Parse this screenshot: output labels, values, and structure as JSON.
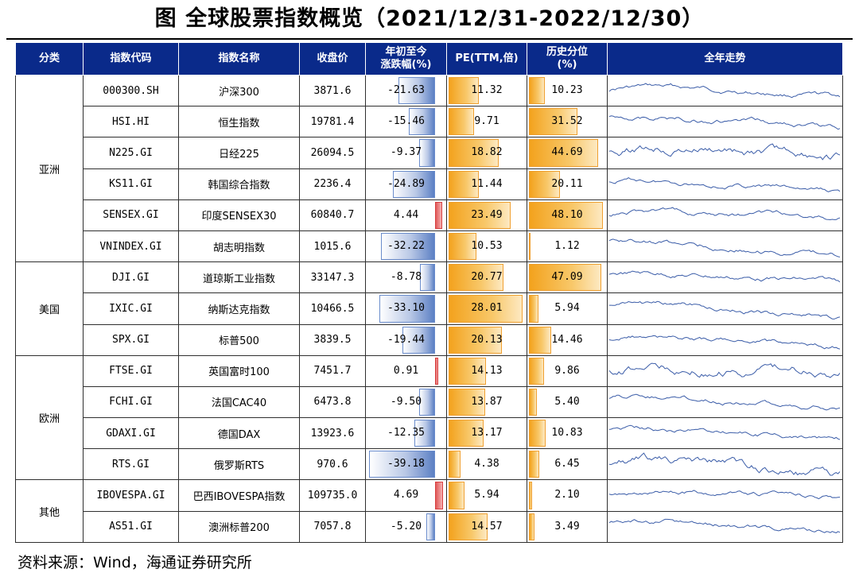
{
  "title": "图  全球股票指数概览（2021/12/31-2022/12/30）",
  "source": "资料来源：Wind，海通证券研究所",
  "headers": {
    "category": "分类",
    "code": "指数代码",
    "name": "指数名称",
    "close": "收盘价",
    "ytd_line1": "年初至今",
    "ytd_line2": "涨跌幅(%)",
    "pe": "PE(TTM,倍)",
    "pct_line1": "历史分位",
    "pct_line2": "(%)",
    "trend": "全年走势"
  },
  "groups": [
    {
      "label": "亚洲",
      "rows": 6
    },
    {
      "label": "美国",
      "rows": 3
    },
    {
      "label": "欧洲",
      "rows": 4
    },
    {
      "label": "其他",
      "rows": 2
    }
  ],
  "rows": [
    {
      "code": "000300.SH",
      "name": "沪深300",
      "close": "3871.6",
      "ytd": "-21.63",
      "ytd_v": -21.63,
      "pe": "11.32",
      "pe_v": 11.32,
      "pct": "10.23",
      "pct_v": 10.23
    },
    {
      "code": "HSI.HI",
      "name": "恒生指数",
      "close": "19781.4",
      "ytd": "-15.46",
      "ytd_v": -15.46,
      "pe": "9.71",
      "pe_v": 9.71,
      "pct": "31.52",
      "pct_v": 31.52
    },
    {
      "code": "N225.GI",
      "name": "日经225",
      "close": "26094.5",
      "ytd": "-9.37",
      "ytd_v": -9.37,
      "pe": "18.82",
      "pe_v": 18.82,
      "pct": "44.69",
      "pct_v": 44.69
    },
    {
      "code": "KS11.GI",
      "name": "韩国综合指数",
      "close": "2236.4",
      "ytd": "-24.89",
      "ytd_v": -24.89,
      "pe": "11.44",
      "pe_v": 11.44,
      "pct": "20.11",
      "pct_v": 20.11
    },
    {
      "code": "SENSEX.GI",
      "name": "印度SENSEX30",
      "close": "60840.7",
      "ytd": "4.44",
      "ytd_v": 4.44,
      "pe": "23.49",
      "pe_v": 23.49,
      "pct": "48.10",
      "pct_v": 48.1
    },
    {
      "code": "VNINDEX.GI",
      "name": "胡志明指数",
      "close": "1015.6",
      "ytd": "-32.22",
      "ytd_v": -32.22,
      "pe": "10.53",
      "pe_v": 10.53,
      "pct": "1.12",
      "pct_v": 1.12
    },
    {
      "code": "DJI.GI",
      "name": "道琼斯工业指数",
      "close": "33147.3",
      "ytd": "-8.78",
      "ytd_v": -8.78,
      "pe": "20.77",
      "pe_v": 20.77,
      "pct": "47.09",
      "pct_v": 47.09
    },
    {
      "code": "IXIC.GI",
      "name": "纳斯达克指数",
      "close": "10466.5",
      "ytd": "-33.10",
      "ytd_v": -33.1,
      "pe": "28.01",
      "pe_v": 28.01,
      "pct": "5.94",
      "pct_v": 5.94
    },
    {
      "code": "SPX.GI",
      "name": "标普500",
      "close": "3839.5",
      "ytd": "-19.44",
      "ytd_v": -19.44,
      "pe": "20.13",
      "pe_v": 20.13,
      "pct": "14.46",
      "pct_v": 14.46
    },
    {
      "code": "FTSE.GI",
      "name": "英国富时100",
      "close": "7451.7",
      "ytd": "0.91",
      "ytd_v": 0.91,
      "pe": "14.13",
      "pe_v": 14.13,
      "pct": "9.86",
      "pct_v": 9.86
    },
    {
      "code": "FCHI.GI",
      "name": "法国CAC40",
      "close": "6473.8",
      "ytd": "-9.50",
      "ytd_v": -9.5,
      "pe": "13.87",
      "pe_v": 13.87,
      "pct": "5.40",
      "pct_v": 5.4
    },
    {
      "code": "GDAXI.GI",
      "name": "德国DAX",
      "close": "13923.6",
      "ytd": "-12.35",
      "ytd_v": -12.35,
      "pe": "13.17",
      "pe_v": 13.17,
      "pct": "10.83",
      "pct_v": 10.83
    },
    {
      "code": "RTS.GI",
      "name": "俄罗斯RTS",
      "close": "970.6",
      "ytd": "-39.18",
      "ytd_v": -39.18,
      "pe": "4.38",
      "pe_v": 4.38,
      "pct": "6.45",
      "pct_v": 6.45
    },
    {
      "code": "IBOVESPA.GI",
      "name": "巴西IBOVESPA指数",
      "close": "109735.0",
      "ytd": "4.69",
      "ytd_v": 4.69,
      "pe": "5.94",
      "pe_v": 5.94,
      "pct": "2.10",
      "pct_v": 2.1
    },
    {
      "code": "AS51.GI",
      "name": "澳洲标普200",
      "close": "7057.8",
      "ytd": "-5.20",
      "ytd_v": -5.2,
      "pe": "14.57",
      "pe_v": 14.57,
      "pct": "3.49",
      "pct_v": 3.49
    }
  ],
  "colors": {
    "header_bg": "#0a2a8a",
    "neg_bar": "#5c80c4",
    "pos_bar": "#e05a5a",
    "pe_bar": "#f3a21d",
    "sparkline": "#3a5ca8"
  }
}
